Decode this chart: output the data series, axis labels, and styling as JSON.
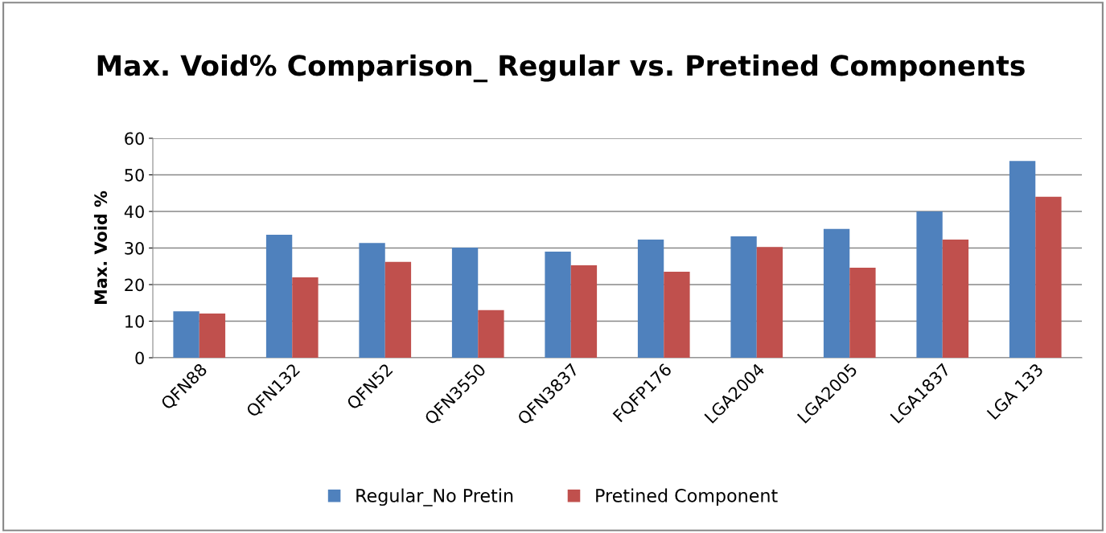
{
  "chart_data": {
    "type": "bar",
    "title": "Max. Void% Comparison_ Regular vs. Pretined Components",
    "ylabel": "Max. Void %",
    "categories": [
      "QFN88",
      "QFN132",
      "QFN52",
      "QFN3550",
      "QFN3837",
      "FQFP176",
      "LGA2004",
      "LGA2005",
      "LGA1837",
      "LGA 133"
    ],
    "series": [
      {
        "name": "Regular_No Pretin",
        "color": "#4f81bd",
        "values": [
          12.7,
          33.6,
          31.4,
          30.1,
          29.0,
          32.3,
          33.2,
          35.2,
          40.0,
          53.8
        ]
      },
      {
        "name": "Pretined Component",
        "color": "#c0504d",
        "values": [
          12.1,
          22.0,
          26.2,
          13.0,
          25.3,
          23.5,
          30.3,
          24.6,
          32.3,
          44.0
        ]
      }
    ],
    "ylim": [
      0,
      60
    ],
    "yticks": [
      0,
      10,
      20,
      30,
      40,
      50,
      60
    ],
    "grid": "y",
    "legend": "bottom"
  }
}
